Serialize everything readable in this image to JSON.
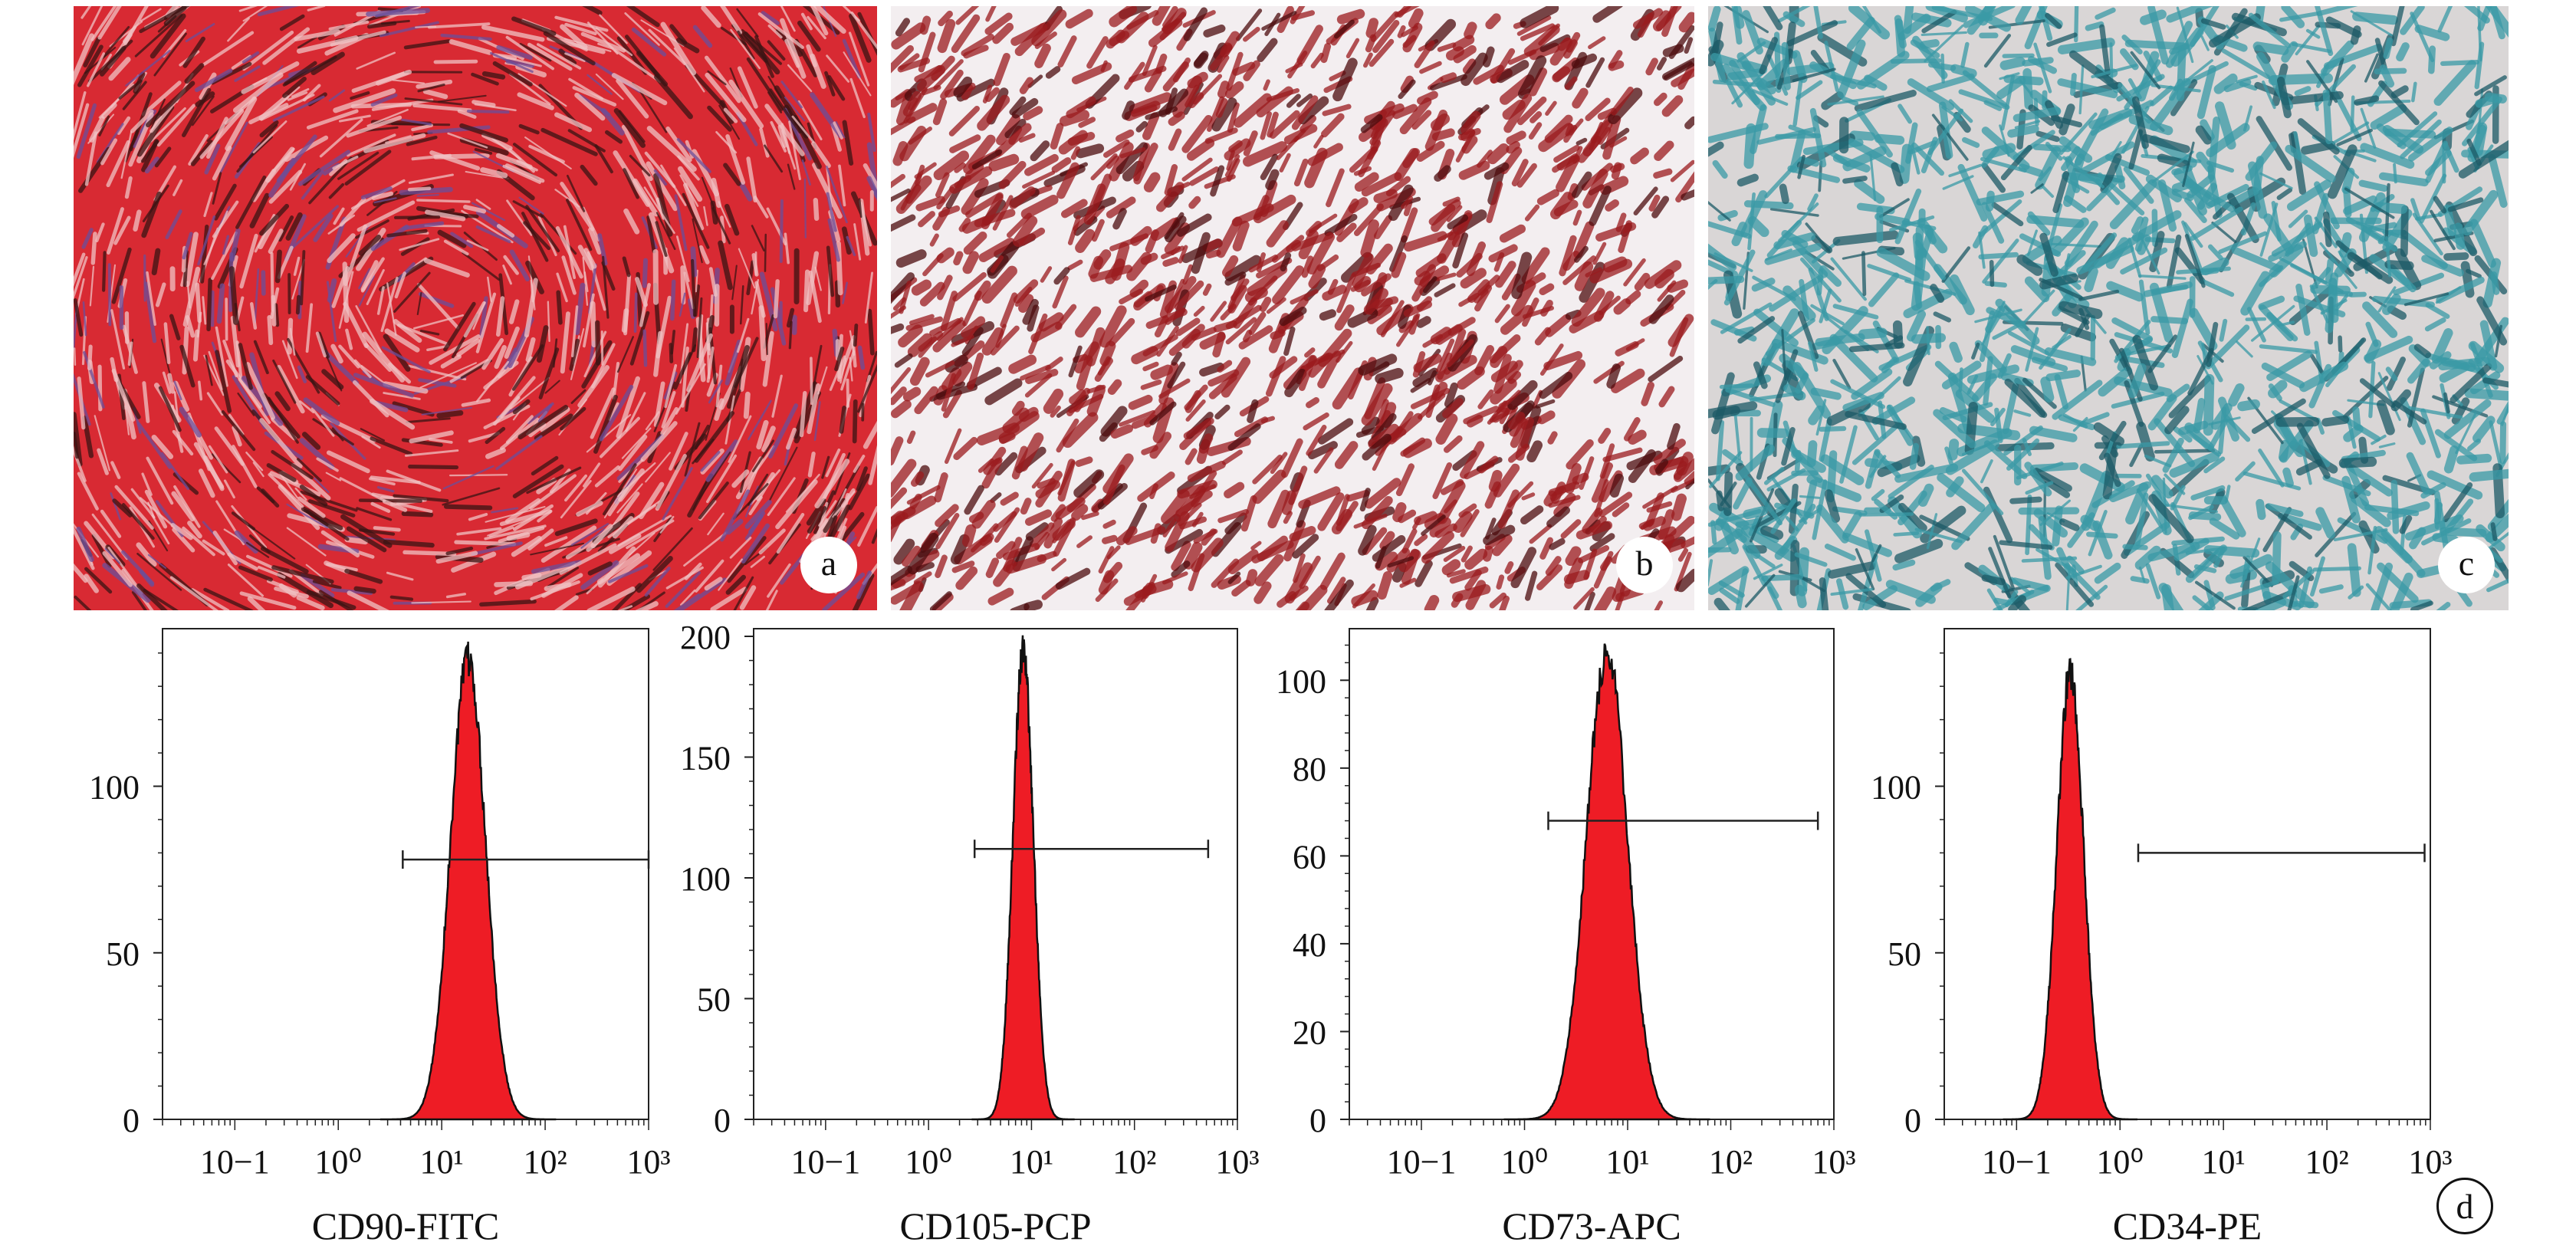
{
  "panels": {
    "a": {
      "label": "a",
      "colors": [
        "#d82a33",
        "#f1c2c4",
        "#3a1414",
        "#6b4f9a"
      ]
    },
    "b": {
      "label": "b",
      "colors": [
        "#9b1b1e",
        "#f3eef0",
        "#4d0c0e"
      ]
    },
    "c": {
      "label": "c",
      "colors": [
        "#3a9aa6",
        "#d9d6d6",
        "#1c5a66"
      ]
    },
    "d": {
      "label": "d"
    }
  },
  "chart_data": [
    {
      "type": "histogram",
      "xlabel": "CD90-FITC",
      "x_scale": "log",
      "xlim": [
        0.02,
        1000
      ],
      "xticks": [
        0.1,
        1,
        10,
        100,
        1000
      ],
      "xtick_labels": [
        "10−1",
        "10⁰",
        "10¹",
        "10²",
        "10³"
      ],
      "ylim": [
        0,
        145
      ],
      "yticks": [
        0,
        50,
        100
      ],
      "ytick_labels": [
        "0",
        "50",
        "100"
      ],
      "peak": {
        "center": 18,
        "height": 138,
        "log_sd": 0.17
      },
      "gate": {
        "from": 4.2,
        "to": 1000,
        "y": 78
      },
      "fill_color": "#ee1c25"
    },
    {
      "type": "histogram",
      "xlabel": "CD105-PCP",
      "x_scale": "log",
      "xlim": [
        0.02,
        1000
      ],
      "xticks": [
        0.1,
        1,
        10,
        100,
        1000
      ],
      "xtick_labels": [
        "10−1",
        "10⁰",
        "10¹",
        "10²",
        "10³"
      ],
      "ylim": [
        0,
        200
      ],
      "yticks": [
        0,
        50,
        100,
        150,
        200
      ],
      "ytick_labels": [
        "0",
        "50",
        "100",
        "150",
        "200"
      ],
      "peak": {
        "center": 8.3,
        "height": 193,
        "log_sd": 0.1
      },
      "gate": {
        "from": 2.8,
        "to": 520,
        "y": 112
      },
      "fill_color": "#ee1c25"
    },
    {
      "type": "histogram",
      "xlabel": "CD73-APC",
      "x_scale": "log",
      "xlim": [
        0.02,
        1000
      ],
      "xticks": [
        0.1,
        1,
        10,
        100,
        1000
      ],
      "xtick_labels": [
        "10−1",
        "10⁰",
        "10¹",
        "10²",
        "10³"
      ],
      "ylim": [
        0,
        110
      ],
      "yticks": [
        0,
        20,
        40,
        60,
        80,
        100
      ],
      "ytick_labels": [
        "0",
        "20",
        "40",
        "60",
        "80",
        "100"
      ],
      "peak": {
        "center": 6.3,
        "height": 106,
        "log_sd": 0.2
      },
      "gate": {
        "from": 1.7,
        "to": 700,
        "y": 68
      },
      "fill_color": "#ee1c25"
    },
    {
      "type": "histogram",
      "xlabel": "CD34-PE",
      "x_scale": "log",
      "xlim": [
        0.02,
        1000
      ],
      "xticks": [
        0.1,
        1,
        10,
        100,
        1000
      ],
      "xtick_labels": [
        "10−1",
        "10⁰",
        "10¹",
        "10²",
        "10³"
      ],
      "ylim": [
        0,
        145
      ],
      "yticks": [
        0,
        50,
        100
      ],
      "ytick_labels": [
        "0",
        "50",
        "100"
      ],
      "peak": {
        "center": 0.33,
        "height": 134,
        "log_sd": 0.13
      },
      "gate": {
        "from": 1.5,
        "to": 880,
        "y": 80
      },
      "fill_color": "#ee1c25"
    }
  ]
}
